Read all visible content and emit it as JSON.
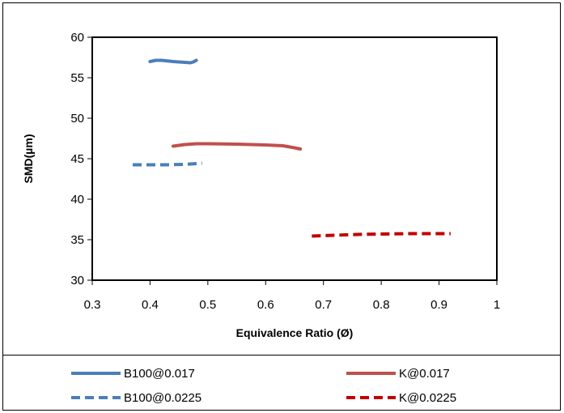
{
  "chart_data": {
    "type": "line",
    "xlabel": "Equivalence Ratio (Ø)",
    "ylabel": "SMD(µm)",
    "xlim": [
      0.3,
      1
    ],
    "ylim": [
      30,
      60
    ],
    "xticks": [
      0.3,
      0.4,
      0.5,
      0.6,
      0.7,
      0.8,
      0.9,
      1
    ],
    "yticks": [
      30,
      35,
      40,
      45,
      50,
      55,
      60
    ],
    "x_tick_labels": [
      "0.3",
      "0.4",
      "0.5",
      "0.6",
      "0.7",
      "0.8",
      "0.9",
      "1"
    ],
    "y_tick_labels": [
      "30",
      "35",
      "40",
      "45",
      "50",
      "55",
      "60"
    ],
    "grid": false,
    "legend_position": "bottom",
    "series": [
      {
        "name": "B100@0.017",
        "color": "#4a7ebb",
        "dash": "solid",
        "x": [
          0.4,
          0.41,
          0.42,
          0.44,
          0.46,
          0.47,
          0.475,
          0.48
        ],
        "y": [
          57.0,
          57.15,
          57.15,
          57.0,
          56.9,
          56.85,
          56.95,
          57.15
        ]
      },
      {
        "name": "K@0.017",
        "color": "#c0504d",
        "dash": "solid",
        "x": [
          0.44,
          0.46,
          0.48,
          0.5,
          0.55,
          0.6,
          0.63,
          0.65,
          0.66
        ],
        "y": [
          46.55,
          46.75,
          46.85,
          46.85,
          46.8,
          46.7,
          46.6,
          46.35,
          46.2
        ]
      },
      {
        "name": "B100@0.0225",
        "color": "#4a7ebb",
        "dash": "dashed",
        "x": [
          0.37,
          0.4,
          0.43,
          0.46,
          0.49
        ],
        "y": [
          44.25,
          44.25,
          44.25,
          44.3,
          44.45
        ]
      },
      {
        "name": "K@0.0225",
        "color": "#c00000",
        "dash": "dashed",
        "x": [
          0.68,
          0.72,
          0.76,
          0.8,
          0.85,
          0.9,
          0.92
        ],
        "y": [
          35.45,
          35.55,
          35.65,
          35.7,
          35.75,
          35.75,
          35.75
        ]
      }
    ]
  }
}
